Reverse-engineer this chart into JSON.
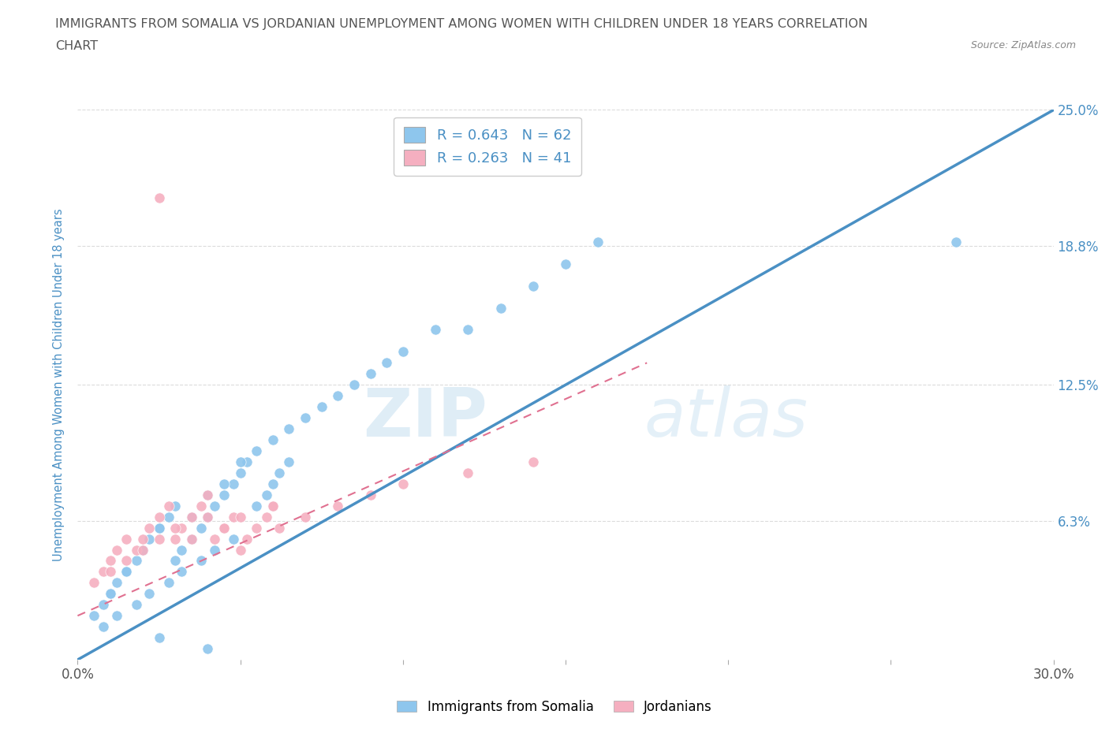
{
  "title_line1": "IMMIGRANTS FROM SOMALIA VS JORDANIAN UNEMPLOYMENT AMONG WOMEN WITH CHILDREN UNDER 18 YEARS CORRELATION",
  "title_line2": "CHART",
  "source_text": "Source: ZipAtlas.com",
  "watermark": "ZIPatlas",
  "ylabel": "Unemployment Among Women with Children Under 18 years",
  "xlim": [
    0.0,
    0.3
  ],
  "ylim": [
    0.0,
    0.25
  ],
  "ytick_vals": [
    0.063,
    0.125,
    0.188,
    0.25
  ],
  "ytick_labels": [
    "6.3%",
    "12.5%",
    "18.8%",
    "25.0%"
  ],
  "somalia_color": "#8ec6ed",
  "jordan_color": "#f5afc0",
  "somalia_line_color": "#4a90c4",
  "jordan_line_color": "#e07090",
  "somalia_R": 0.643,
  "somalia_N": 62,
  "jordan_R": 0.263,
  "jordan_N": 41,
  "ytick_label_color": "#4a90c4",
  "background_color": "#ffffff",
  "grid_color": "#cccccc",
  "somalia_scatter_x": [
    0.005,
    0.008,
    0.01,
    0.012,
    0.015,
    0.018,
    0.02,
    0.022,
    0.025,
    0.028,
    0.03,
    0.032,
    0.035,
    0.038,
    0.04,
    0.042,
    0.045,
    0.048,
    0.05,
    0.052,
    0.055,
    0.058,
    0.06,
    0.062,
    0.065,
    0.01,
    0.015,
    0.02,
    0.025,
    0.03,
    0.035,
    0.04,
    0.045,
    0.05,
    0.055,
    0.06,
    0.065,
    0.07,
    0.075,
    0.08,
    0.085,
    0.09,
    0.095,
    0.1,
    0.11,
    0.12,
    0.13,
    0.14,
    0.15,
    0.16,
    0.008,
    0.012,
    0.018,
    0.022,
    0.028,
    0.032,
    0.038,
    0.042,
    0.048,
    0.27,
    0.025,
    0.04
  ],
  "somalia_scatter_y": [
    0.02,
    0.025,
    0.03,
    0.035,
    0.04,
    0.045,
    0.05,
    0.055,
    0.06,
    0.065,
    0.045,
    0.05,
    0.055,
    0.06,
    0.065,
    0.07,
    0.075,
    0.08,
    0.085,
    0.09,
    0.07,
    0.075,
    0.08,
    0.085,
    0.09,
    0.03,
    0.04,
    0.05,
    0.06,
    0.07,
    0.065,
    0.075,
    0.08,
    0.09,
    0.095,
    0.1,
    0.105,
    0.11,
    0.115,
    0.12,
    0.125,
    0.13,
    0.135,
    0.14,
    0.15,
    0.15,
    0.16,
    0.17,
    0.18,
    0.19,
    0.015,
    0.02,
    0.025,
    0.03,
    0.035,
    0.04,
    0.045,
    0.05,
    0.055,
    0.19,
    0.01,
    0.005
  ],
  "jordan_scatter_x": [
    0.005,
    0.008,
    0.01,
    0.012,
    0.015,
    0.018,
    0.02,
    0.022,
    0.025,
    0.028,
    0.03,
    0.032,
    0.035,
    0.038,
    0.04,
    0.042,
    0.045,
    0.048,
    0.05,
    0.052,
    0.055,
    0.058,
    0.06,
    0.062,
    0.01,
    0.015,
    0.02,
    0.025,
    0.03,
    0.035,
    0.04,
    0.045,
    0.05,
    0.06,
    0.07,
    0.08,
    0.09,
    0.1,
    0.12,
    0.14,
    0.025
  ],
  "jordan_scatter_y": [
    0.035,
    0.04,
    0.045,
    0.05,
    0.055,
    0.05,
    0.055,
    0.06,
    0.065,
    0.07,
    0.055,
    0.06,
    0.065,
    0.07,
    0.075,
    0.055,
    0.06,
    0.065,
    0.05,
    0.055,
    0.06,
    0.065,
    0.07,
    0.06,
    0.04,
    0.045,
    0.05,
    0.055,
    0.06,
    0.055,
    0.065,
    0.06,
    0.065,
    0.07,
    0.065,
    0.07,
    0.075,
    0.08,
    0.085,
    0.09,
    0.21
  ],
  "somalia_line_x": [
    0.0,
    0.3
  ],
  "somalia_line_y": [
    0.0,
    0.25
  ],
  "jordan_line_x": [
    0.0,
    0.175
  ],
  "jordan_line_y": [
    0.02,
    0.135
  ]
}
